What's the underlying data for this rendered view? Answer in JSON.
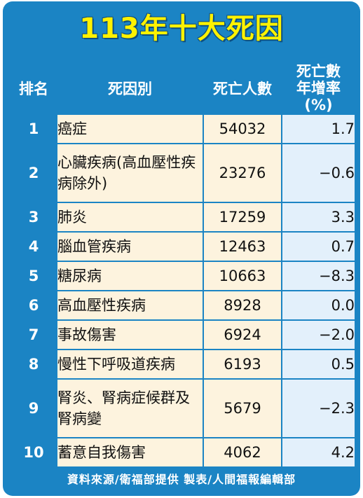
{
  "chart_data": {
    "type": "table",
    "title": "113年十大死因",
    "columns": {
      "rank": "排名",
      "cause": "死因別",
      "deaths": "死亡人數",
      "rate_line1": "死亡數",
      "rate_line2": "年增率(%)"
    },
    "rows": [
      {
        "rank": "1",
        "cause": "癌症",
        "deaths": "54032",
        "rate": "1.7"
      },
      {
        "rank": "2",
        "cause": "心臟疾病(高血壓性疾病除外)",
        "deaths": "23276",
        "rate": "−0.6"
      },
      {
        "rank": "3",
        "cause": "肺炎",
        "deaths": "17259",
        "rate": "3.3"
      },
      {
        "rank": "4",
        "cause": "腦血管疾病",
        "deaths": "12463",
        "rate": "0.7"
      },
      {
        "rank": "5",
        "cause": "糖尿病",
        "deaths": "10663",
        "rate": "−8.3"
      },
      {
        "rank": "6",
        "cause": "高血壓性疾病",
        "deaths": "8928",
        "rate": "0.0"
      },
      {
        "rank": "7",
        "cause": "事故傷害",
        "deaths": "6924",
        "rate": "−2.0"
      },
      {
        "rank": "8",
        "cause": "慢性下呼吸道疾病",
        "deaths": "6193",
        "rate": "0.5"
      },
      {
        "rank": "9",
        "cause": "腎炎、腎病症候群及腎病變",
        "deaths": "5679",
        "rate": "−2.3"
      },
      {
        "rank": "10",
        "cause": "蓄意自我傷害",
        "deaths": "4062",
        "rate": "4.2"
      }
    ],
    "footer": "資料來源/衛福部提供 製表/人間福報編輯部"
  },
  "colors": {
    "frame": "#1b84c4",
    "title": "#fff200",
    "cause_cells": "#fdf3de",
    "rate_cells": "#e3f0fb"
  }
}
